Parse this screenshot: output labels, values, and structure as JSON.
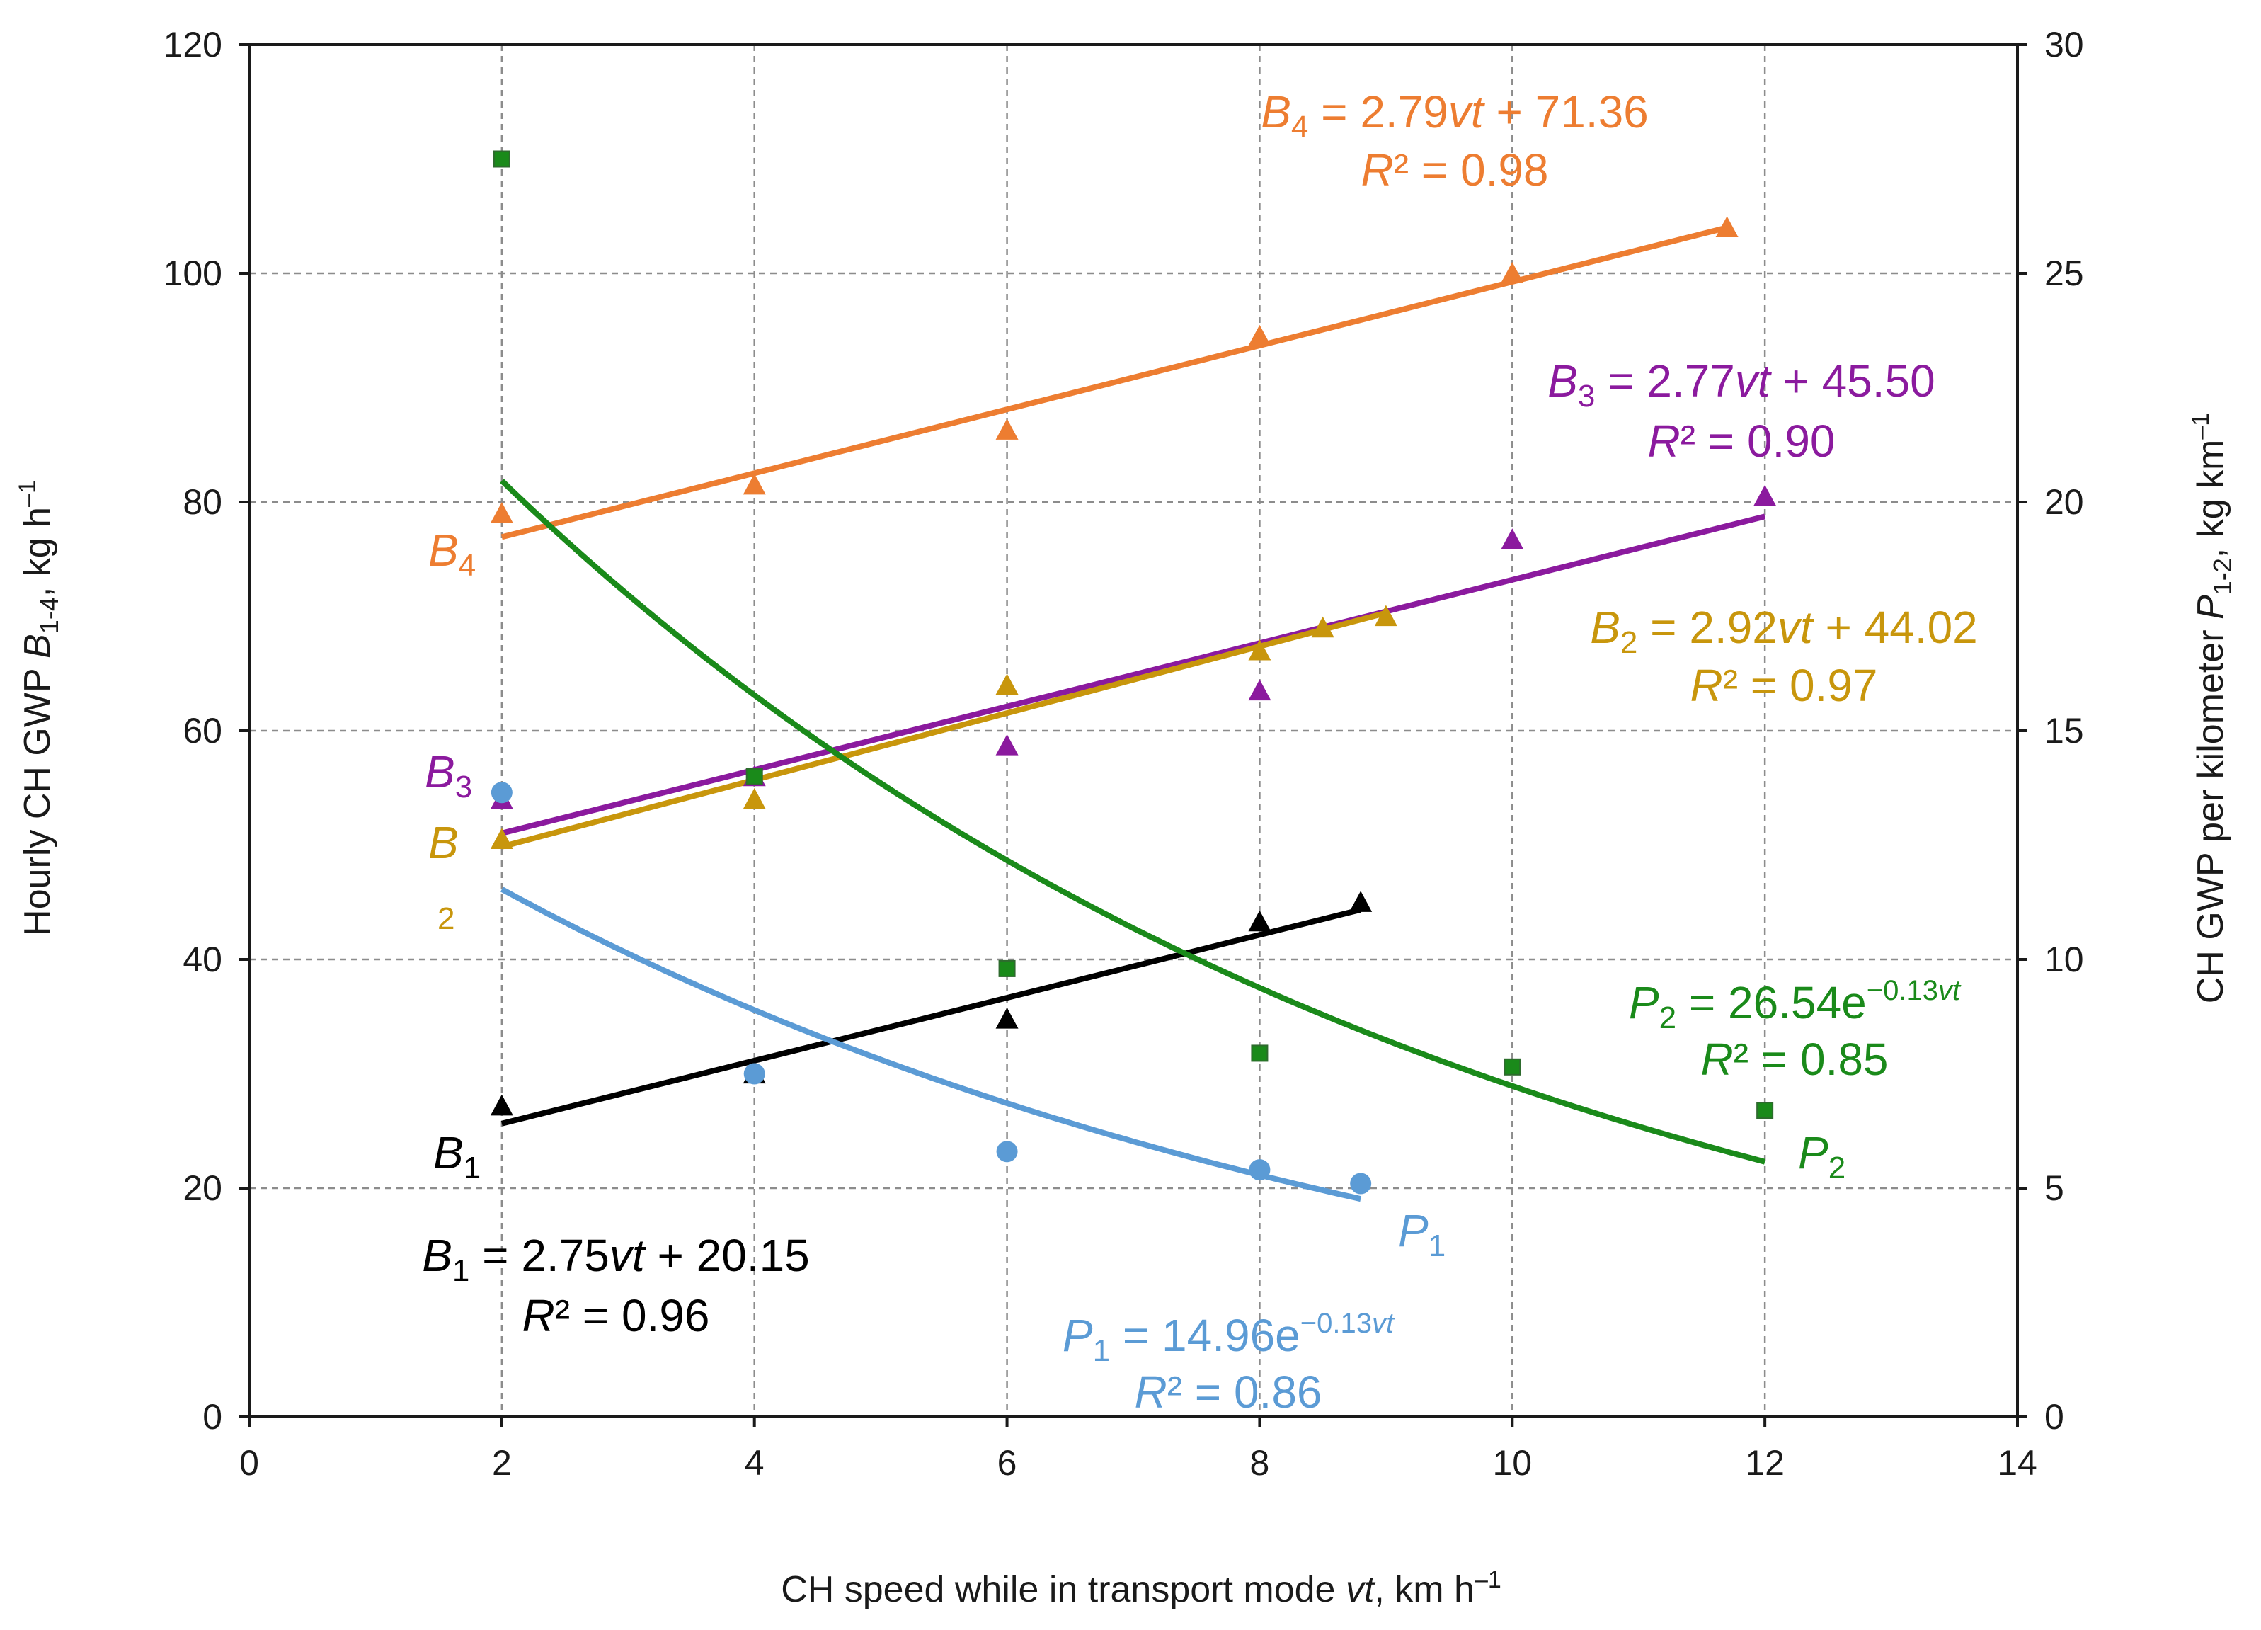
{
  "chart_data": {
    "type": "scatter",
    "title": "",
    "xlabel": {
      "text": "CH speed while in transport mode ",
      "var": "vt",
      "unit": ", km h",
      "sup": "–1"
    },
    "ylabel_left": {
      "pre": "Hourly CH GWP ",
      "var": "B",
      "sub": "1-4",
      "post": ", kg h",
      "sup": "–1"
    },
    "ylabel_right": {
      "pre": "CH GWP per kilometer ",
      "var": "P",
      "sub": "1-2",
      "post": ", kg km",
      "sup": "–1"
    },
    "xlim": [
      0,
      14
    ],
    "ylim_left": [
      0,
      120
    ],
    "ylim_right": [
      0,
      30
    ],
    "x_ticks": [
      "0",
      "2",
      "4",
      "6",
      "8",
      "10",
      "12",
      "14"
    ],
    "y_left_ticks": [
      "0",
      "20",
      "40",
      "60",
      "80",
      "100",
      "120"
    ],
    "y_right_ticks": [
      "0",
      "5",
      "10",
      "15",
      "20",
      "25",
      "30"
    ],
    "grid": true,
    "series": [
      {
        "name": "B4",
        "axis": "left",
        "color": "#ed7d31",
        "marker": "triangle",
        "points": [
          [
            2,
            79
          ],
          [
            4,
            81.5
          ],
          [
            6,
            86.3
          ],
          [
            8,
            94.5
          ],
          [
            10,
            100
          ],
          [
            11.7,
            104
          ]
        ],
        "fit": {
          "type": "linear",
          "slope": 2.79,
          "intercept": 71.36,
          "range": [
            2,
            11.7
          ]
        },
        "label": {
          "var": "B",
          "sub": "4"
        },
        "equation": {
          "var": "B",
          "sub": "4",
          "rhs": " = 2.79vt + 71.36"
        },
        "r2": {
          "var": "R",
          "rhs": "² = 0.98"
        }
      },
      {
        "name": "B3",
        "axis": "left",
        "color": "#8b1a9e",
        "marker": "triangle",
        "points": [
          [
            2,
            54
          ],
          [
            4,
            56
          ],
          [
            6,
            58.7
          ],
          [
            8,
            63.5
          ],
          [
            10,
            76.7
          ],
          [
            12,
            80.5
          ]
        ],
        "fit": {
          "type": "linear",
          "slope": 2.77,
          "intercept": 45.5,
          "range": [
            2,
            12
          ]
        },
        "label": {
          "var": "B",
          "sub": "3"
        },
        "equation": {
          "var": "B",
          "sub": "3",
          "rhs": " = 2.77vt + 45.50"
        },
        "r2": {
          "var": "R",
          "rhs": "² = 0.90"
        }
      },
      {
        "name": "B2",
        "axis": "left",
        "color": "#c8960c",
        "marker": "triangle",
        "points": [
          [
            2,
            50.5
          ],
          [
            4,
            54
          ],
          [
            6,
            64
          ],
          [
            8,
            67
          ],
          [
            8.5,
            69
          ],
          [
            9,
            70
          ]
        ],
        "fit": {
          "type": "linear",
          "slope": 2.92,
          "intercept": 44.02,
          "range": [
            2,
            9
          ]
        },
        "label": {
          "var": "B",
          "sub": "2"
        },
        "equation": {
          "var": "B",
          "sub": "2",
          "rhs": " = 2.92vt + 44.02"
        },
        "r2": {
          "var": "R",
          "rhs": "² = 0.97"
        }
      },
      {
        "name": "B1",
        "axis": "left",
        "color": "#000000",
        "marker": "triangle",
        "points": [
          [
            2,
            27.2
          ],
          [
            4,
            30
          ],
          [
            6,
            34.8
          ],
          [
            8,
            43.3
          ],
          [
            8.8,
            45
          ]
        ],
        "fit": {
          "type": "linear",
          "slope": 2.75,
          "intercept": 20.15,
          "range": [
            2,
            8.8
          ]
        },
        "label": {
          "var": "B",
          "sub": "1"
        },
        "equation": {
          "var": "B",
          "sub": "1",
          "rhs": " = 2.75vt + 20.15"
        },
        "r2": {
          "var": "R",
          "rhs": "² = 0.96"
        }
      },
      {
        "name": "P2",
        "axis": "right",
        "color": "#1a8a1a",
        "marker": "square",
        "points": [
          [
            2,
            27.5
          ],
          [
            4,
            14
          ],
          [
            6,
            9.8
          ],
          [
            8,
            7.95
          ],
          [
            10,
            7.65
          ],
          [
            12,
            6.7
          ]
        ],
        "fit": {
          "type": "exponential",
          "a": 26.54,
          "b": -0.13,
          "range": [
            2,
            12
          ]
        },
        "label": {
          "var": "P",
          "sub": "2"
        },
        "equation": {
          "var": "P",
          "sub": "2",
          "rhs": " = 26.54e",
          "sup": "−0.13vt"
        },
        "r2": {
          "var": "R",
          "rhs": "² = 0.85"
        }
      },
      {
        "name": "P1",
        "axis": "right",
        "color": "#5b9bd5",
        "marker": "circle",
        "points": [
          [
            2,
            13.65
          ],
          [
            4,
            7.5
          ],
          [
            6,
            5.8
          ],
          [
            8,
            5.4
          ],
          [
            8.8,
            5.1
          ]
        ],
        "fit": {
          "type": "exponential",
          "a": 14.96,
          "b": -0.13,
          "range": [
            2,
            8.8
          ]
        },
        "label": {
          "var": "P",
          "sub": "1"
        },
        "equation": {
          "var": "P",
          "sub": "1",
          "rhs": " = 14.96e",
          "sup": "−0.13vt"
        },
        "r2": {
          "var": "R",
          "rhs": "² = 0.86"
        }
      }
    ]
  }
}
